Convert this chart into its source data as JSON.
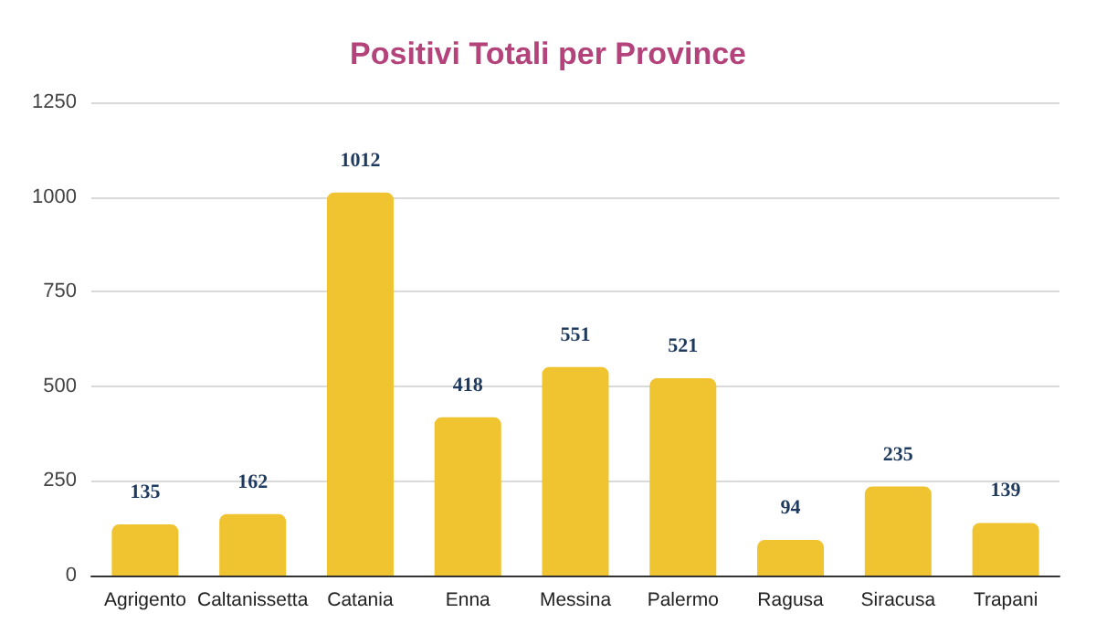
{
  "chart_data": {
    "type": "bar",
    "title": "Positivi Totali per Province",
    "categories": [
      "Agrigento",
      "Caltanissetta",
      "Catania",
      "Enna",
      "Messina",
      "Palermo",
      "Ragusa",
      "Siracusa",
      "Trapani"
    ],
    "values": [
      135,
      162,
      1012,
      418,
      551,
      521,
      94,
      235,
      139
    ],
    "color": "#f0c431",
    "ylim": [
      0,
      1250
    ],
    "yticks": [
      0,
      250,
      500,
      750,
      1000,
      1250
    ],
    "grid": "y",
    "data_labels": true
  }
}
